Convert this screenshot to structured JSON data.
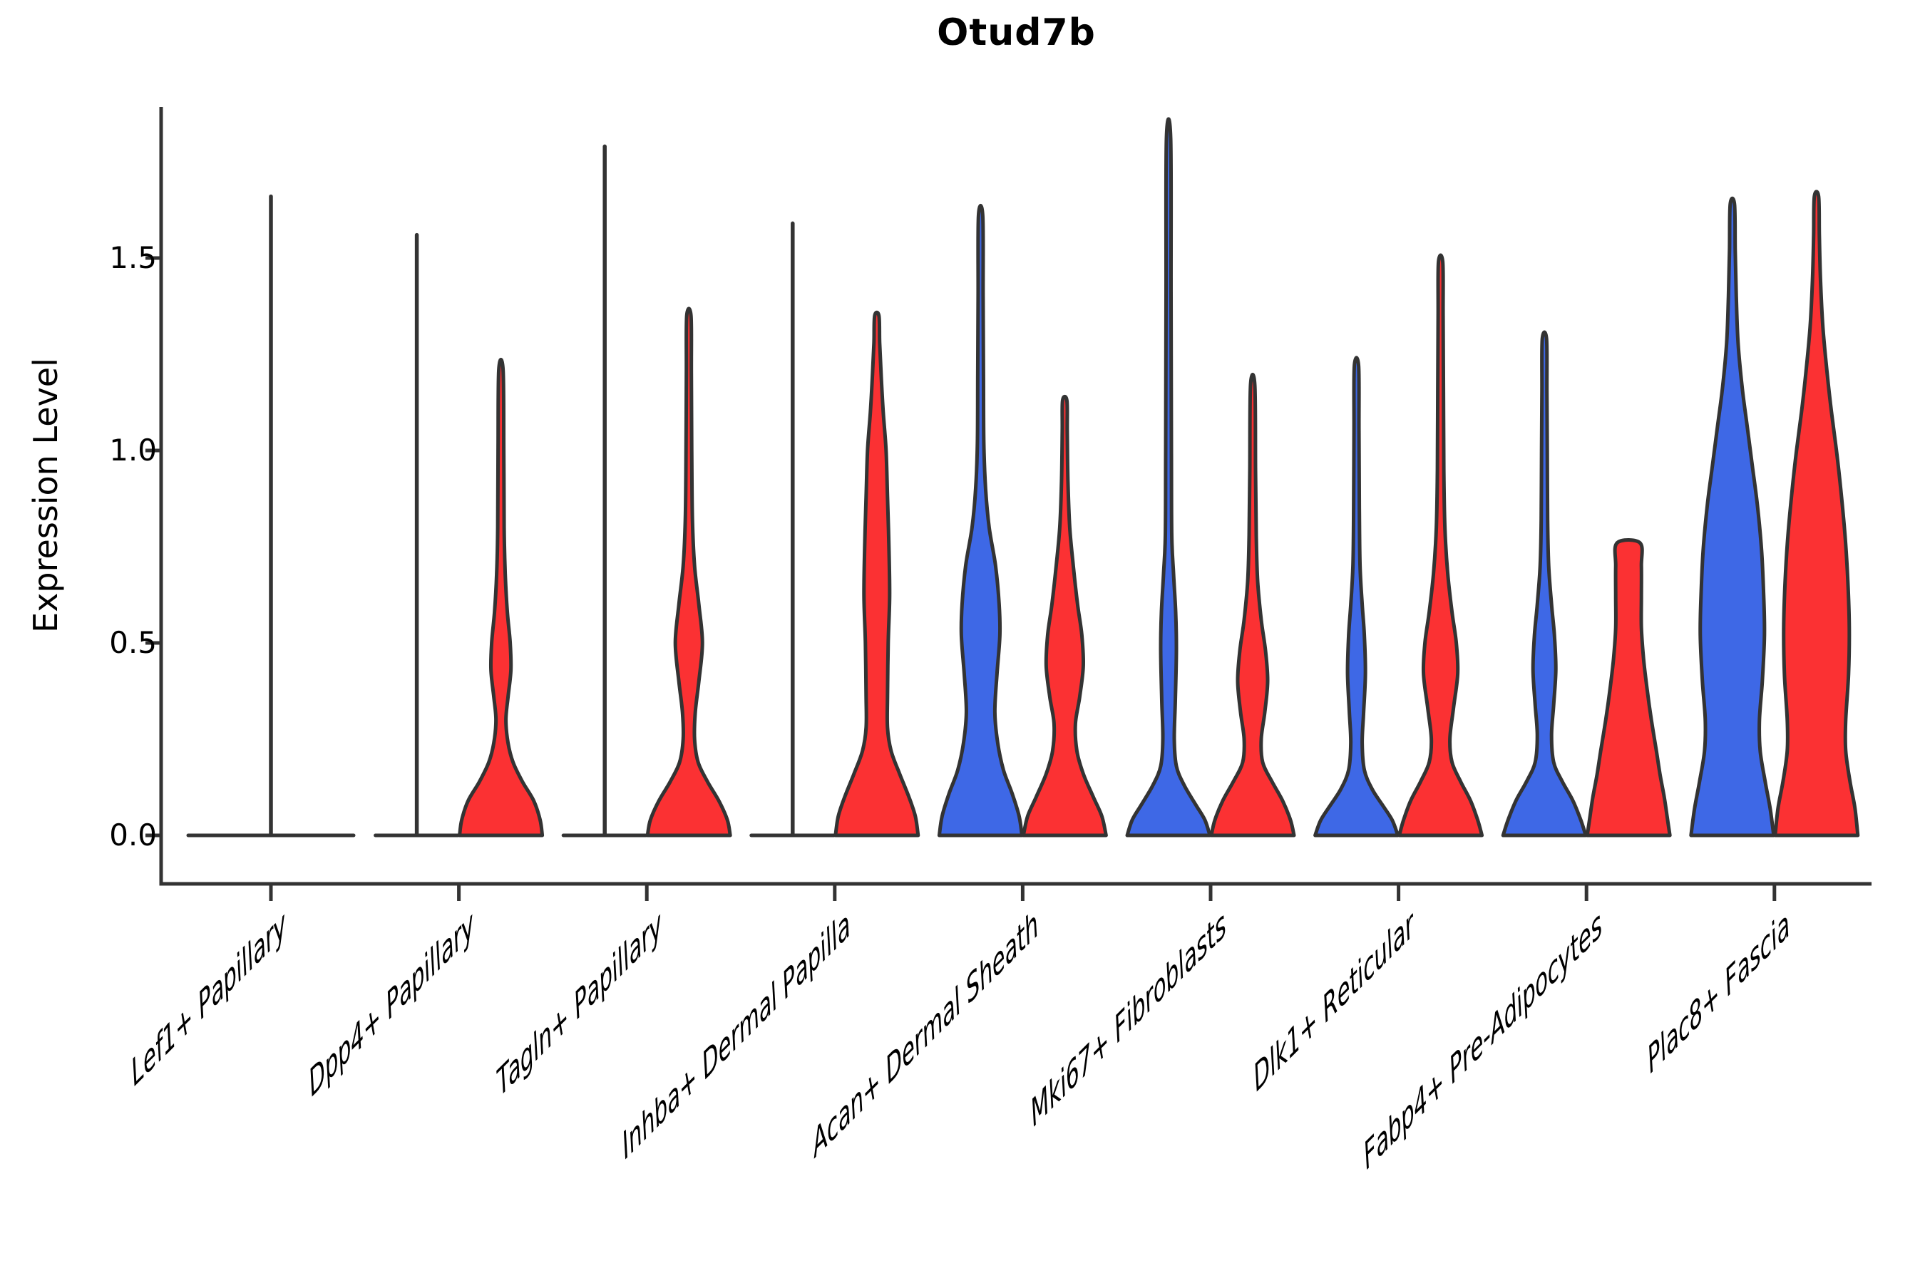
{
  "chart_data": {
    "type": "violin",
    "title": "Otud7b",
    "ylabel": "Expression Level",
    "ylim": [
      -0.06,
      1.9
    ],
    "yticks": [
      0,
      0.5,
      1.0,
      1.5
    ],
    "ytick_labels": [
      "0.0",
      "0.5",
      "1.0",
      "1.5"
    ],
    "legend_position": "none",
    "grid": false,
    "split_colors": {
      "left": "#3E68E6",
      "right": "#FB3133",
      "outline": "#333333"
    },
    "groups": [
      {
        "label": "Lef1+ Papillary",
        "violins": [
          {
            "side": "center",
            "kind": "flat",
            "max": 1.66,
            "span": 116
          }
        ]
      },
      {
        "label": "Dpp4+ Papillary",
        "violins": [
          {
            "side": "left",
            "kind": "flat",
            "max": 1.56,
            "span": 58
          },
          {
            "side": "right",
            "kind": "density",
            "max": 1.21,
            "profile": [
              [
                0,
                58
              ],
              [
                0.04,
                55
              ],
              [
                0.09,
                46
              ],
              [
                0.14,
                30
              ],
              [
                0.19,
                17
              ],
              [
                0.24,
                10
              ],
              [
                0.3,
                7
              ],
              [
                0.36,
                10
              ],
              [
                0.43,
                14
              ],
              [
                0.5,
                13
              ],
              [
                0.58,
                9
              ],
              [
                0.68,
                6
              ],
              [
                0.8,
                4.5
              ],
              [
                1.0,
                4
              ],
              [
                1.21,
                3
              ]
            ]
          }
        ]
      },
      {
        "label": "Tagln+ Papillary",
        "violins": [
          {
            "side": "left",
            "kind": "flat",
            "max": 1.79,
            "span": 58
          },
          {
            "side": "right",
            "kind": "density",
            "max": 1.35,
            "profile": [
              [
                0,
                58
              ],
              [
                0.04,
                54
              ],
              [
                0.09,
                42
              ],
              [
                0.14,
                26
              ],
              [
                0.19,
                13
              ],
              [
                0.25,
                8
              ],
              [
                0.32,
                9
              ],
              [
                0.4,
                14
              ],
              [
                0.5,
                19
              ],
              [
                0.6,
                14
              ],
              [
                0.7,
                8
              ],
              [
                0.82,
                5
              ],
              [
                1.0,
                4
              ],
              [
                1.2,
                3.5
              ],
              [
                1.35,
                3
              ]
            ]
          }
        ]
      },
      {
        "label": "Inhba+ Dermal Papilla",
        "violins": [
          {
            "side": "left",
            "kind": "flat",
            "max": 1.59,
            "span": 58
          },
          {
            "side": "right",
            "kind": "density",
            "max": 1.35,
            "profile": [
              [
                0,
                58
              ],
              [
                0.05,
                54
              ],
              [
                0.1,
                45
              ],
              [
                0.16,
                32
              ],
              [
                0.22,
                20
              ],
              [
                0.28,
                15
              ],
              [
                0.36,
                15
              ],
              [
                0.5,
                16
              ],
              [
                0.62,
                18
              ],
              [
                0.75,
                17
              ],
              [
                0.88,
                15
              ],
              [
                1.0,
                13
              ],
              [
                1.1,
                9
              ],
              [
                1.2,
                6
              ],
              [
                1.28,
                4
              ],
              [
                1.35,
                3
              ]
            ]
          }
        ]
      },
      {
        "label": "Acan+ Dermal Sheath",
        "violins": [
          {
            "side": "left",
            "kind": "density",
            "max": 1.61,
            "profile": [
              [
                0,
                58
              ],
              [
                0.05,
                54
              ],
              [
                0.11,
                44
              ],
              [
                0.17,
                32
              ],
              [
                0.24,
                24
              ],
              [
                0.32,
                20
              ],
              [
                0.42,
                23
              ],
              [
                0.52,
                27
              ],
              [
                0.6,
                26
              ],
              [
                0.7,
                21
              ],
              [
                0.8,
                12
              ],
              [
                0.9,
                7
              ],
              [
                1.02,
                4.5
              ],
              [
                1.2,
                4
              ],
              [
                1.4,
                3.5
              ],
              [
                1.61,
                3
              ]
            ]
          },
          {
            "side": "right",
            "kind": "density",
            "max": 1.13,
            "profile": [
              [
                0,
                58
              ],
              [
                0.05,
                52
              ],
              [
                0.1,
                40
              ],
              [
                0.16,
                26
              ],
              [
                0.22,
                17
              ],
              [
                0.29,
                15
              ],
              [
                0.36,
                21
              ],
              [
                0.44,
                26
              ],
              [
                0.52,
                24
              ],
              [
                0.6,
                18
              ],
              [
                0.7,
                12
              ],
              [
                0.8,
                7
              ],
              [
                0.92,
                4.5
              ],
              [
                1.05,
                3.5
              ],
              [
                1.13,
                3
              ]
            ]
          }
        ]
      },
      {
        "label": "Mki67+ Fibroblasts",
        "violins": [
          {
            "side": "left",
            "kind": "density",
            "max": 1.81,
            "profile": [
              [
                0,
                58
              ],
              [
                0.04,
                51
              ],
              [
                0.08,
                38
              ],
              [
                0.13,
                22
              ],
              [
                0.18,
                11
              ],
              [
                0.25,
                8
              ],
              [
                0.35,
                9.5
              ],
              [
                0.48,
                11
              ],
              [
                0.58,
                10
              ],
              [
                0.68,
                7
              ],
              [
                0.78,
                4.5
              ],
              [
                1.0,
                4
              ],
              [
                1.4,
                3.5
              ],
              [
                1.81,
                3
              ]
            ]
          },
          {
            "side": "right",
            "kind": "density",
            "max": 1.17,
            "profile": [
              [
                0,
                58
              ],
              [
                0.04,
                53
              ],
              [
                0.09,
                42
              ],
              [
                0.14,
                27
              ],
              [
                0.19,
                14
              ],
              [
                0.25,
                12
              ],
              [
                0.32,
                17
              ],
              [
                0.4,
                21
              ],
              [
                0.48,
                18
              ],
              [
                0.56,
                12
              ],
              [
                0.66,
                7
              ],
              [
                0.78,
                5
              ],
              [
                0.95,
                4
              ],
              [
                1.17,
                3
              ]
            ]
          }
        ]
      },
      {
        "label": "Dlk1+ Reticular",
        "violins": [
          {
            "side": "left",
            "kind": "density",
            "max": 1.22,
            "profile": [
              [
                0,
                58
              ],
              [
                0.04,
                50
              ],
              [
                0.08,
                36
              ],
              [
                0.12,
                22
              ],
              [
                0.17,
                11
              ],
              [
                0.24,
                8
              ],
              [
                0.32,
                10
              ],
              [
                0.42,
                12.5
              ],
              [
                0.52,
                11
              ],
              [
                0.6,
                8
              ],
              [
                0.7,
                5
              ],
              [
                0.85,
                4
              ],
              [
                1.05,
                3.5
              ],
              [
                1.22,
                3
              ]
            ]
          },
          {
            "side": "right",
            "kind": "density",
            "max": 1.49,
            "profile": [
              [
                0,
                58
              ],
              [
                0.04,
                52
              ],
              [
                0.09,
                42
              ],
              [
                0.14,
                28
              ],
              [
                0.19,
                16
              ],
              [
                0.25,
                13
              ],
              [
                0.33,
                18
              ],
              [
                0.42,
                24
              ],
              [
                0.5,
                22
              ],
              [
                0.58,
                16
              ],
              [
                0.68,
                10
              ],
              [
                0.8,
                6
              ],
              [
                0.95,
                4.5
              ],
              [
                1.15,
                4
              ],
              [
                1.35,
                3.5
              ],
              [
                1.49,
                3
              ]
            ]
          }
        ]
      },
      {
        "label": "Fabp4+ Pre-Adipocytes",
        "violins": [
          {
            "side": "left",
            "kind": "density",
            "max": 1.29,
            "profile": [
              [
                0,
                58
              ],
              [
                0.04,
                51
              ],
              [
                0.09,
                40
              ],
              [
                0.14,
                25
              ],
              [
                0.19,
                13
              ],
              [
                0.26,
                10
              ],
              [
                0.34,
                13
              ],
              [
                0.43,
                16
              ],
              [
                0.52,
                14
              ],
              [
                0.6,
                10
              ],
              [
                0.7,
                6
              ],
              [
                0.82,
                4.5
              ],
              [
                1.0,
                4
              ],
              [
                1.15,
                3.5
              ],
              [
                1.29,
                3
              ]
            ]
          },
          {
            "side": "right",
            "kind": "density",
            "max": 0.76,
            "flat_top": true,
            "profile": [
              [
                0,
                58
              ],
              [
                0.05,
                54
              ],
              [
                0.1,
                50
              ],
              [
                0.16,
                44
              ],
              [
                0.22,
                39
              ],
              [
                0.3,
                32
              ],
              [
                0.38,
                26
              ],
              [
                0.46,
                21
              ],
              [
                0.54,
                18
              ],
              [
                0.62,
                18
              ],
              [
                0.7,
                18
              ],
              [
                0.76,
                16
              ]
            ]
          }
        ]
      },
      {
        "label": "Plac8+ Fascia",
        "violins": [
          {
            "side": "left",
            "kind": "density",
            "max": 1.64,
            "profile": [
              [
                0,
                58
              ],
              [
                0.07,
                53
              ],
              [
                0.14,
                46
              ],
              [
                0.22,
                39
              ],
              [
                0.3,
                38
              ],
              [
                0.4,
                42
              ],
              [
                0.52,
                45
              ],
              [
                0.62,
                44
              ],
              [
                0.74,
                41
              ],
              [
                0.86,
                35
              ],
              [
                0.96,
                28
              ],
              [
                1.06,
                21
              ],
              [
                1.16,
                14
              ],
              [
                1.28,
                8
              ],
              [
                1.4,
                5.5
              ],
              [
                1.52,
                4
              ],
              [
                1.64,
                3
              ]
            ]
          },
          {
            "side": "right",
            "kind": "density",
            "max": 1.66,
            "profile": [
              [
                0,
                58
              ],
              [
                0.07,
                54
              ],
              [
                0.14,
                47
              ],
              [
                0.22,
                41
              ],
              [
                0.3,
                41
              ],
              [
                0.42,
                45
              ],
              [
                0.54,
                46
              ],
              [
                0.66,
                44
              ],
              [
                0.78,
                40
              ],
              [
                0.9,
                34
              ],
              [
                1.0,
                28
              ],
              [
                1.1,
                21
              ],
              [
                1.2,
                15
              ],
              [
                1.32,
                9
              ],
              [
                1.45,
                5.5
              ],
              [
                1.56,
                4
              ],
              [
                1.66,
                3
              ]
            ]
          }
        ]
      }
    ]
  }
}
